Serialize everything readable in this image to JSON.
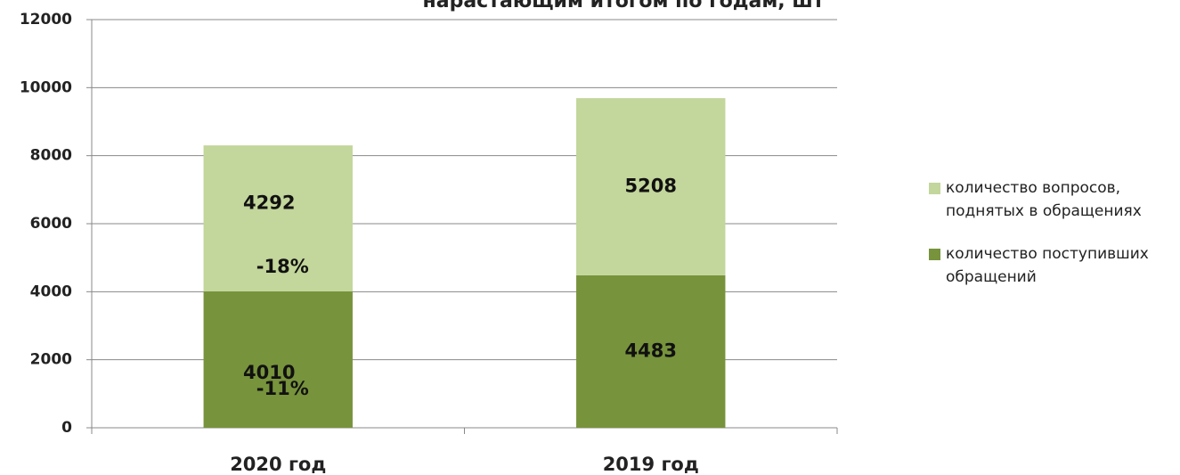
{
  "chart_data": {
    "type": "stacked_bar",
    "title": "нарастающим итогом по годам, шт",
    "categories": [
      "2020 год",
      "2019 год"
    ],
    "series": [
      {
        "name": "количество поступивших обращений",
        "color": "#77933c",
        "values": [
          4010,
          4483
        ]
      },
      {
        "name": "количество вопросов, поднятых в обращениях",
        "color": "#c3d69b",
        "values": [
          4292,
          5208
        ]
      }
    ],
    "annotations": [
      "-18%",
      "-11%"
    ],
    "ylim": [
      0,
      12000
    ],
    "yticks": [
      0,
      2000,
      4000,
      6000,
      8000,
      10000,
      12000
    ],
    "grid": true,
    "legend": "right"
  }
}
